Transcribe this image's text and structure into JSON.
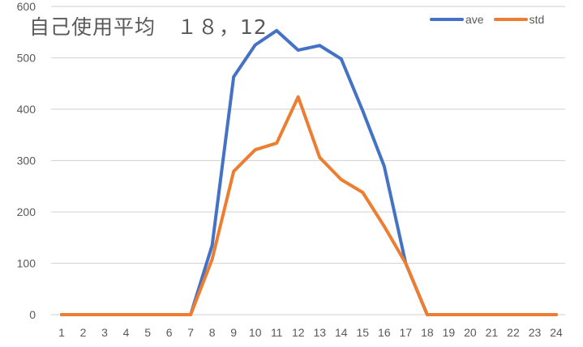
{
  "title": "自己使用平均　１８，12",
  "colors": {
    "ave": "#4472C4",
    "std": "#ED7D31",
    "grid": "#D9D9D9",
    "text": "#595959"
  },
  "legend": [
    {
      "name": "ave",
      "color": "#4472C4"
    },
    {
      "name": "std",
      "color": "#ED7D31"
    }
  ],
  "chart_data": {
    "type": "line",
    "title": "自己使用平均　１８，12",
    "xlabel": "",
    "ylabel": "",
    "x": [
      1,
      2,
      3,
      4,
      5,
      6,
      7,
      8,
      9,
      10,
      11,
      12,
      13,
      14,
      15,
      16,
      17,
      18,
      19,
      20,
      21,
      22,
      23,
      24
    ],
    "ylim": [
      0,
      600
    ],
    "yticks": [
      0,
      100,
      200,
      300,
      400,
      500,
      600
    ],
    "grid": true,
    "legend_position": "top-right",
    "series": [
      {
        "name": "ave",
        "color": "#4472C4",
        "values": [
          0,
          0,
          0,
          0,
          0,
          0,
          0,
          135,
          463,
          525,
          553,
          515,
          524,
          498,
          397,
          289,
          100,
          0,
          0,
          0,
          0,
          0,
          0,
          0
        ]
      },
      {
        "name": "std",
        "color": "#ED7D31",
        "values": [
          0,
          0,
          0,
          0,
          0,
          0,
          0,
          108,
          279,
          321,
          334,
          424,
          306,
          263,
          238,
          172,
          100,
          0,
          0,
          0,
          0,
          0,
          0,
          0
        ]
      }
    ]
  }
}
